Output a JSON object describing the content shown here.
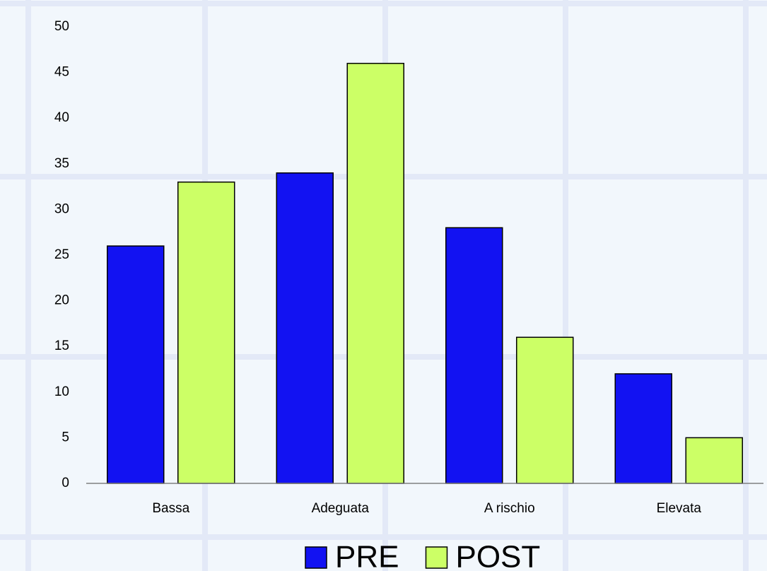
{
  "chart_data": {
    "type": "bar",
    "categories": [
      "Bassa",
      "Adeguata",
      "A rischio",
      "Elevata"
    ],
    "series": [
      {
        "name": "PRE",
        "color": "#1212f2",
        "values": [
          26,
          34,
          28,
          12
        ]
      },
      {
        "name": "POST",
        "color": "#ccff66",
        "values": [
          33,
          46,
          16,
          5
        ]
      }
    ],
    "ylim": [
      0,
      50
    ],
    "yticks": [
      0,
      5,
      10,
      15,
      20,
      25,
      30,
      35,
      40,
      45,
      50
    ],
    "grid": false,
    "legend": "bottom"
  }
}
